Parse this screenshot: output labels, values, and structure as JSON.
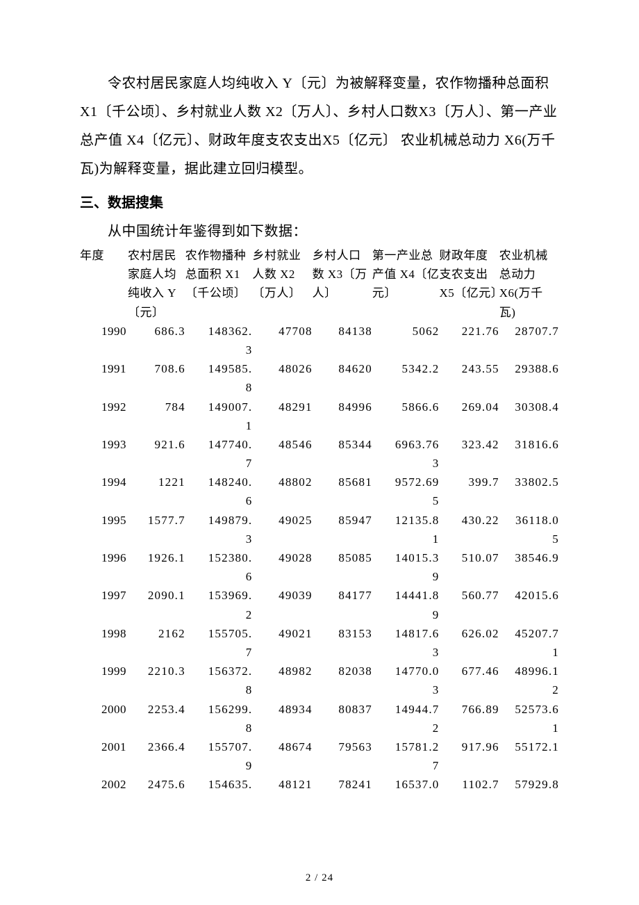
{
  "intro_paragraph": "令农村居民家庭人均纯收入 Y〔元〕为被解释变量，农作物播种总面积 X1〔千公顷〕、乡村就业人数 X2〔万人〕、乡村人口数X3〔万人〕、第一产业总产值 X4〔亿元〕、财政年度支农支出X5〔亿元〕  农业机械总动力 X6(万千瓦)为解释变量，据此建立回归模型。",
  "section_heading": "三、数据搜集",
  "sub_line": "从中国统计年鉴得到如下数据：",
  "footer": "2 / 24",
  "table": {
    "type": "table",
    "font_size": 17,
    "text_color": "#000000",
    "background_color": "#ffffff",
    "col_widths_percent": [
      10,
      12,
      14,
      12.5,
      12.5,
      14,
      12.5,
      12.5
    ],
    "columns": [
      "年度",
      "农村居民家庭人均纯收入\nY〔元〕",
      "农作物播种总面积\nX1〔千公顷〕",
      "乡村就业人数\nX2〔万人〕",
      "乡村人口数\nX3〔万人〕",
      "第一产业总产值\nX4〔亿元〕",
      "财政年度支农支出\nX5〔亿元〕",
      "农业机械总动力\nX6(万千瓦)"
    ],
    "rows": [
      [
        "1990",
        "686.3",
        "148362.\n3",
        "47708",
        "84138",
        "5062",
        "221.76",
        "28707.7"
      ],
      [
        "1991",
        "708.6",
        "149585.\n8",
        "48026",
        "84620",
        "5342.2",
        "243.55",
        "29388.6"
      ],
      [
        "1992",
        "784",
        "149007.\n1",
        "48291",
        "84996",
        "5866.6",
        "269.04",
        "30308.4"
      ],
      [
        "1993",
        "921.6",
        "147740.\n7",
        "48546",
        "85344",
        "6963.76\n3",
        "323.42",
        "31816.6"
      ],
      [
        "1994",
        "1221",
        "148240.\n6",
        "48802",
        "85681",
        "9572.69\n5",
        "399.7",
        "33802.5"
      ],
      [
        "1995",
        "1577.7",
        "149879.\n3",
        "49025",
        "85947",
        "12135.8\n1",
        "430.22",
        "36118.0\n5"
      ],
      [
        "1996",
        "1926.1",
        "152380.\n6",
        "49028",
        "85085",
        "14015.3\n9",
        "510.07",
        "38546.9"
      ],
      [
        "1997",
        "2090.1",
        "153969.\n2",
        "49039",
        "84177",
        "14441.8\n9",
        "560.77",
        "42015.6"
      ],
      [
        "1998",
        "2162",
        "155705.\n7",
        "49021",
        "83153",
        "14817.6\n3",
        "626.02",
        "45207.7\n1"
      ],
      [
        "1999",
        "2210.3",
        "156372.\n8",
        "48982",
        "82038",
        "14770.0\n3",
        "677.46",
        "48996.1\n2"
      ],
      [
        "2000",
        "2253.4",
        "156299.\n8",
        "48934",
        "80837",
        "14944.7\n2",
        "766.89",
        "52573.6\n1"
      ],
      [
        "2001",
        "2366.4",
        "155707.\n9",
        "48674",
        "79563",
        "15781.2\n7",
        "917.96",
        "55172.1"
      ],
      [
        "2002",
        "2475.6",
        "154635.",
        "48121",
        "78241",
        "16537.0",
        "1102.7",
        "57929.8"
      ]
    ]
  }
}
